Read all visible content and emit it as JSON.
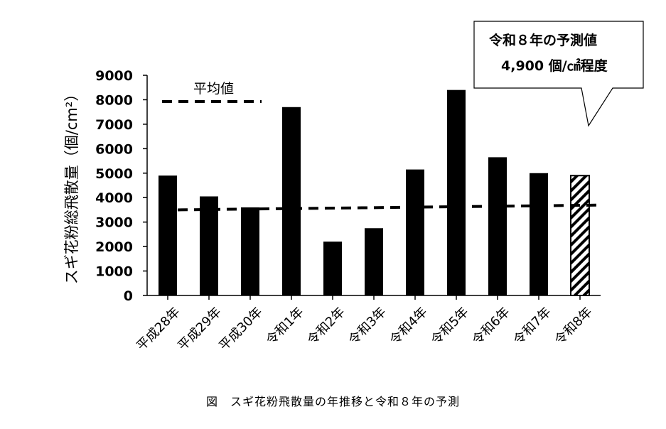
{
  "chart_data": {
    "type": "bar",
    "title": "",
    "ylabel": "スギ花粉総飛散量（個/cm²）",
    "xlabel": "",
    "ylim": [
      0,
      9000
    ],
    "yticks": [
      "0",
      "1000",
      "2000",
      "3000",
      "4000",
      "5000",
      "6000",
      "7000",
      "8000",
      "9000"
    ],
    "categories": [
      "平成28年",
      "平成29年",
      "平成30年",
      "令和1年",
      "令和2年",
      "令和3年",
      "令和4年",
      "令和5年",
      "令和6年",
      "令和7年",
      "令和8年"
    ],
    "values": [
      4900,
      4050,
      3600,
      7700,
      2200,
      2750,
      5150,
      8400,
      5650,
      5000,
      4900
    ],
    "forecast_index": 10,
    "average_line": {
      "label": "平均値",
      "value": 3550
    },
    "bar_color": "#000000"
  },
  "callout": {
    "line1": "令和８年の予測値",
    "line2": "4,900 個/㎠程度"
  },
  "caption": "図　スギ花粉飛散量の年推移と令和８年の予測"
}
